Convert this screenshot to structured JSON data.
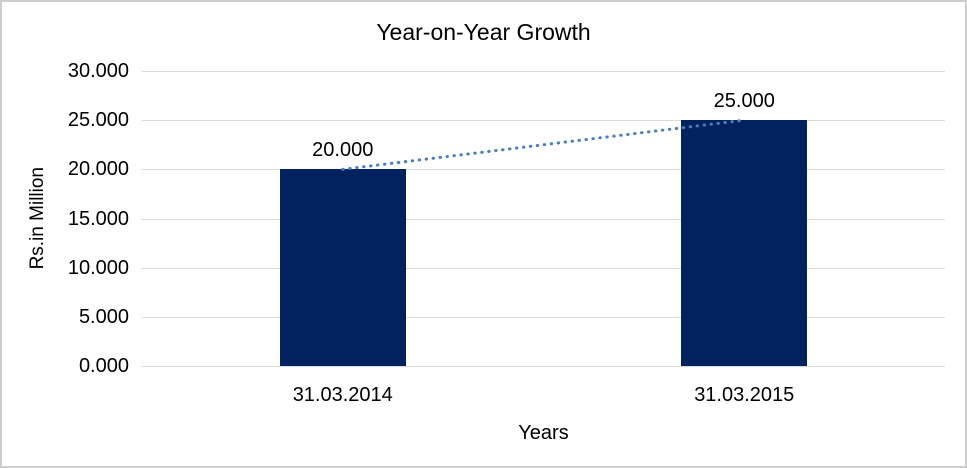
{
  "chart_data": {
    "type": "bar",
    "title": "Year-on-Year Growth",
    "xlabel": "Years",
    "ylabel": "Rs.in Million",
    "categories": [
      "31.03.2014",
      "31.03.2015"
    ],
    "values": [
      20,
      25
    ],
    "value_labels": [
      "20.000",
      "25.000"
    ],
    "ylim": [
      0,
      30
    ],
    "yticks": [
      {
        "value": 0,
        "label": "0.000"
      },
      {
        "value": 5,
        "label": "5.000"
      },
      {
        "value": 10,
        "label": "10.000"
      },
      {
        "value": 15,
        "label": "15.000"
      },
      {
        "value": 20,
        "label": "20.000"
      },
      {
        "value": 25,
        "label": "25.000"
      },
      {
        "value": 30,
        "label": "30.000"
      }
    ],
    "grid": "horizontal",
    "legend": "none",
    "trendline": true,
    "colors": {
      "bar": "#02225F",
      "trendline": "#4A7EBB",
      "gridline": "#D9D9D9",
      "frame_border": "#CFCECE",
      "text": "#000000"
    }
  }
}
